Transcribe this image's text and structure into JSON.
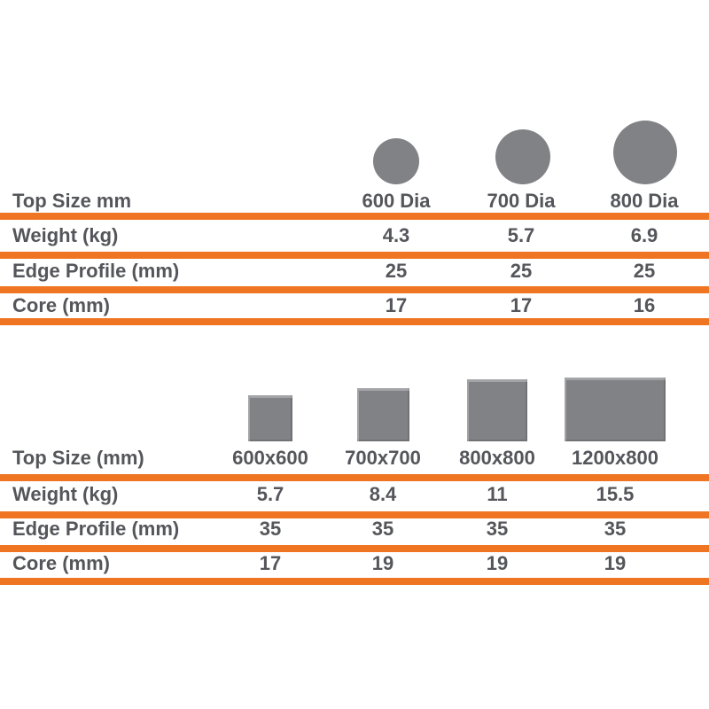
{
  "colors": {
    "accent": "#ef7522",
    "shape": "#808285",
    "text": "#55565b"
  },
  "tables": [
    {
      "id": "round-tops",
      "shape": "circle",
      "header_label": "Top Size mm",
      "columns": [
        {
          "label": "600 Dia"
        },
        {
          "label": "700 Dia"
        },
        {
          "label": "800 Dia"
        }
      ],
      "rows": [
        {
          "label": "Weight (kg)",
          "values": [
            "4.3",
            "5.7",
            "6.9"
          ]
        },
        {
          "label": "Edge Profile (mm)",
          "values": [
            "25",
            "25",
            "25"
          ]
        },
        {
          "label": "Core (mm)",
          "values": [
            "17",
            "17",
            "16"
          ]
        }
      ]
    },
    {
      "id": "square-tops",
      "shape": "square",
      "header_label": "Top Size (mm)",
      "columns": [
        {
          "label": "600x600"
        },
        {
          "label": "700x700"
        },
        {
          "label": "800x800"
        },
        {
          "label": "1200x800"
        }
      ],
      "rows": [
        {
          "label": "Weight (kg)",
          "values": [
            "5.7",
            "8.4",
            "11",
            "15.5"
          ]
        },
        {
          "label": "Edge Profile (mm)",
          "values": [
            "35",
            "35",
            "35",
            "35"
          ]
        },
        {
          "label": "Core (mm)",
          "values": [
            "17",
            "19",
            "19",
            "19"
          ]
        }
      ]
    }
  ],
  "chart_data": [
    {
      "type": "table",
      "title": "Round table tops specification",
      "columns": [
        "600 Dia",
        "700 Dia",
        "800 Dia"
      ],
      "rows": [
        [
          "Top Size mm",
          "600 Dia",
          "700 Dia",
          "800 Dia"
        ],
        [
          "Weight (kg)",
          4.3,
          5.7,
          6.9
        ],
        [
          "Edge Profile (mm)",
          25,
          25,
          25
        ],
        [
          "Core (mm)",
          17,
          17,
          16
        ]
      ]
    },
    {
      "type": "table",
      "title": "Square / rectangular table tops specification",
      "columns": [
        "600x600",
        "700x700",
        "800x800",
        "1200x800"
      ],
      "rows": [
        [
          "Top Size (mm)",
          "600x600",
          "700x700",
          "800x800",
          "1200x800"
        ],
        [
          "Weight (kg)",
          5.7,
          8.4,
          11,
          15.5
        ],
        [
          "Edge Profile (mm)",
          35,
          35,
          35,
          35
        ],
        [
          "Core (mm)",
          17,
          19,
          19,
          19
        ]
      ]
    }
  ]
}
